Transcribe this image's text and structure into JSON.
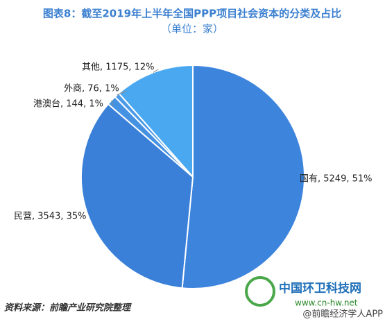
{
  "chart_data": {
    "type": "pie",
    "title": "图表8：截至2019年上半年全国PPP项目社会资本的分类及占比",
    "subtitle": "（单位：家）",
    "categories": [
      "国有",
      "民营",
      "港澳台",
      "外商",
      "其他"
    ],
    "values": [
      5249,
      3543,
      144,
      76,
      1175
    ],
    "value_labels": [
      "国有, 5249, 51%",
      "民营, 3543, 35%",
      "港澳台, 144, 1%",
      "外商, 76, 1%",
      "其他, 1175, 12%"
    ],
    "colors": [
      "#3d84dd",
      "#3b80d8",
      "#4592e3",
      "#4a9ae8",
      "#4aa8f0"
    ],
    "source": "资料来源：前瞻产业研究院整理",
    "watermark": {
      "name": "中国环卫科技网",
      "url": "www.cn-hw.net",
      "app": "@前瞻经济学人APP"
    }
  }
}
